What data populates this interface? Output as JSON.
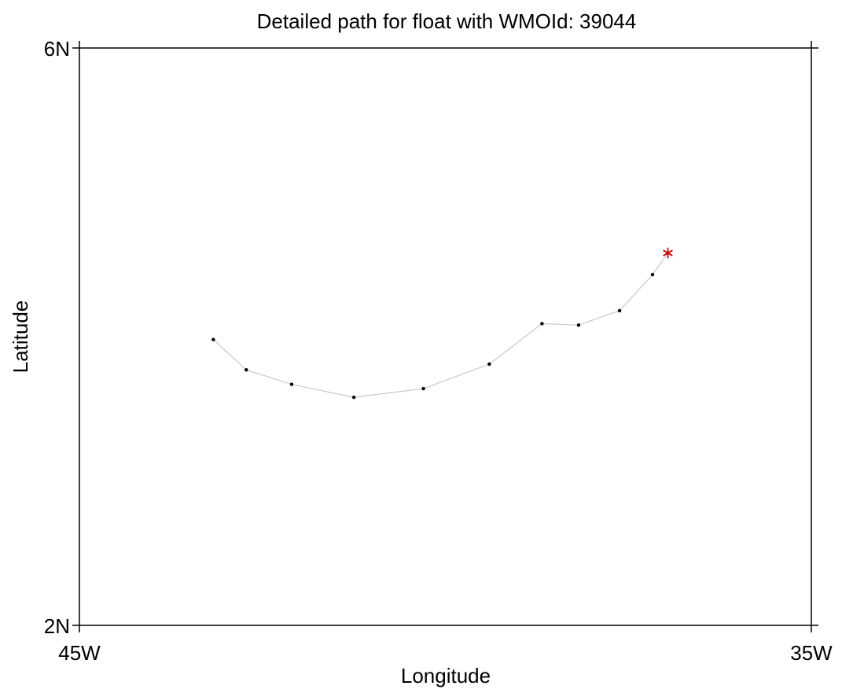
{
  "chart_data": {
    "type": "scatter",
    "title": "Detailed path for float with WMOId: 39044",
    "xlabel": "Longitude",
    "ylabel": "Latitude",
    "xlim": [
      -45,
      -35
    ],
    "ylim": [
      2,
      6
    ],
    "xticks": [
      {
        "value": -45,
        "label": "45W"
      },
      {
        "value": -35,
        "label": "35W"
      }
    ],
    "yticks": [
      {
        "value": 2,
        "label": "2N"
      },
      {
        "value": 6,
        "label": "6N"
      }
    ],
    "grid": false,
    "series": [
      {
        "x": [
          -43.17,
          -42.72,
          -42.1,
          -41.25,
          -40.3,
          -39.4,
          -38.68,
          -38.18,
          -37.62,
          -37.17
        ],
        "y": [
          3.98,
          3.77,
          3.67,
          3.58,
          3.64,
          3.81,
          4.09,
          4.08,
          4.18,
          4.43
        ],
        "line_color": "#c8c8c8",
        "marker_color": "#000000"
      }
    ],
    "last_position": {
      "x": -36.96,
      "y": 4.58,
      "marker": "asterisk",
      "color": "#cc0000"
    }
  }
}
